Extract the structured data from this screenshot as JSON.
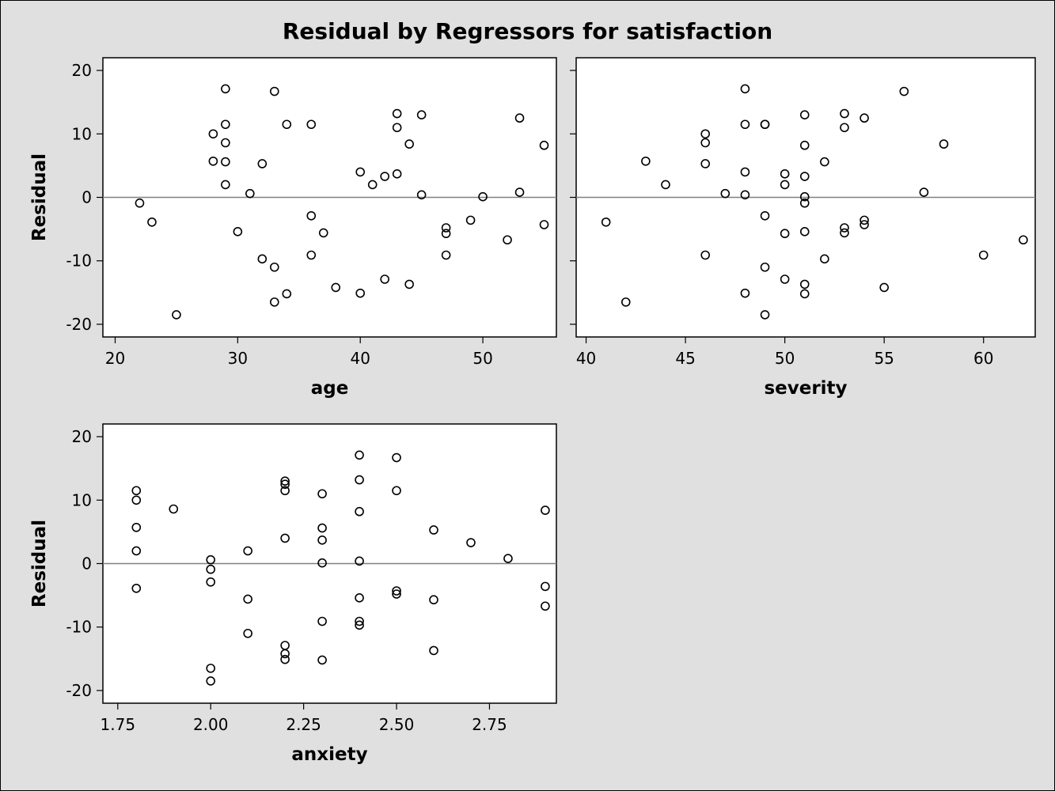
{
  "title": "Residual by Regressors for satisfaction",
  "colors": {
    "background": "#e0e0e0",
    "panel": "#ffffff",
    "reference_line": "#808080",
    "marker": "#000000"
  },
  "chart_data": [
    {
      "type": "scatter",
      "xlabel": "age",
      "ylabel": "Residual",
      "xticks": [
        "20",
        "30",
        "40",
        "50"
      ],
      "xtick_values": [
        20,
        30,
        40,
        50
      ],
      "yticks": [
        "-20",
        "-10",
        "0",
        "10",
        "20"
      ],
      "ytick_values": [
        -20,
        -10,
        0,
        10,
        20
      ],
      "xlim": [
        19,
        56
      ],
      "ylim": [
        -22,
        22
      ],
      "reference_line_y": 0,
      "points": [
        [
          22,
          -0.9
        ],
        [
          23,
          -3.9
        ],
        [
          25,
          -18.5
        ],
        [
          28,
          10.0
        ],
        [
          28,
          5.7
        ],
        [
          29,
          17.1
        ],
        [
          29,
          11.5
        ],
        [
          29,
          8.6
        ],
        [
          29,
          5.6
        ],
        [
          29,
          2.0
        ],
        [
          30,
          -5.4
        ],
        [
          31,
          0.6
        ],
        [
          32,
          5.3
        ],
        [
          32,
          -9.7
        ],
        [
          33,
          16.7
        ],
        [
          33,
          -11.0
        ],
        [
          33,
          -16.5
        ],
        [
          34,
          11.5
        ],
        [
          34,
          -15.2
        ],
        [
          36,
          11.5
        ],
        [
          36,
          -2.9
        ],
        [
          36,
          -9.1
        ],
        [
          37,
          -5.6
        ],
        [
          38,
          -14.2
        ],
        [
          40,
          4.0
        ],
        [
          40,
          -15.1
        ],
        [
          41,
          2.0
        ],
        [
          42,
          3.3
        ],
        [
          42,
          -12.9
        ],
        [
          43,
          13.2
        ],
        [
          43,
          11.0
        ],
        [
          43,
          3.7
        ],
        [
          44,
          8.4
        ],
        [
          44,
          -13.7
        ],
        [
          45,
          13.0
        ],
        [
          45,
          0.4
        ],
        [
          47,
          -4.8
        ],
        [
          47,
          -5.7
        ],
        [
          47,
          -9.1
        ],
        [
          49,
          -3.6
        ],
        [
          50,
          0.1
        ],
        [
          52,
          -6.7
        ],
        [
          53,
          12.5
        ],
        [
          53,
          0.8
        ],
        [
          55,
          8.2
        ],
        [
          55,
          -4.3
        ]
      ]
    },
    {
      "type": "scatter",
      "xlabel": "severity",
      "ylabel": "",
      "xticks": [
        "40",
        "45",
        "50",
        "55",
        "60"
      ],
      "xtick_values": [
        40,
        45,
        50,
        55,
        60
      ],
      "yticks": [],
      "ytick_values": [
        -20,
        -10,
        0,
        10,
        20
      ],
      "xlim": [
        39.5,
        62.6
      ],
      "ylim": [
        -22,
        22
      ],
      "reference_line_y": 0,
      "points": [
        [
          41,
          -3.9
        ],
        [
          42,
          -16.5
        ],
        [
          43,
          5.7
        ],
        [
          44,
          2.0
        ],
        [
          46,
          10.0
        ],
        [
          46,
          8.6
        ],
        [
          46,
          5.3
        ],
        [
          46,
          -9.1
        ],
        [
          47,
          0.6
        ],
        [
          48,
          17.1
        ],
        [
          48,
          11.5
        ],
        [
          48,
          4.0
        ],
        [
          48,
          0.4
        ],
        [
          48,
          -15.1
        ],
        [
          49,
          11.5
        ],
        [
          49,
          11.5
        ],
        [
          49,
          -2.9
        ],
        [
          49,
          -11.0
        ],
        [
          49,
          -18.5
        ],
        [
          50,
          3.7
        ],
        [
          50,
          2.0
        ],
        [
          50,
          -5.7
        ],
        [
          50,
          -12.9
        ],
        [
          51,
          13.0
        ],
        [
          51,
          8.2
        ],
        [
          51,
          3.3
        ],
        [
          51,
          0.1
        ],
        [
          51,
          -0.9
        ],
        [
          51,
          -5.4
        ],
        [
          51,
          -13.7
        ],
        [
          51,
          -15.2
        ],
        [
          52,
          5.6
        ],
        [
          52,
          -9.7
        ],
        [
          53,
          13.2
        ],
        [
          53,
          11.0
        ],
        [
          53,
          -4.8
        ],
        [
          53,
          -5.6
        ],
        [
          54,
          12.5
        ],
        [
          54,
          -3.6
        ],
        [
          54,
          -4.3
        ],
        [
          55,
          -14.2
        ],
        [
          56,
          16.7
        ],
        [
          57,
          0.8
        ],
        [
          58,
          8.4
        ],
        [
          60,
          -9.1
        ],
        [
          62,
          -6.7
        ]
      ]
    },
    {
      "type": "scatter",
      "xlabel": "anxiety",
      "ylabel": "Residual",
      "xticks": [
        "1.75",
        "2.00",
        "2.25",
        "2.50",
        "2.75"
      ],
      "xtick_values": [
        1.75,
        2.0,
        2.25,
        2.5,
        2.75
      ],
      "yticks": [
        "-20",
        "-10",
        "0",
        "10",
        "20"
      ],
      "ytick_values": [
        -20,
        -10,
        0,
        10,
        20
      ],
      "xlim": [
        1.71,
        2.93
      ],
      "ylim": [
        -22,
        22
      ],
      "reference_line_y": 0,
      "points": [
        [
          1.8,
          11.5
        ],
        [
          1.8,
          10.0
        ],
        [
          1.8,
          5.7
        ],
        [
          1.8,
          2.0
        ],
        [
          1.8,
          -3.9
        ],
        [
          1.9,
          8.6
        ],
        [
          2.0,
          0.6
        ],
        [
          2.0,
          -0.9
        ],
        [
          2.0,
          -2.9
        ],
        [
          2.0,
          -16.5
        ],
        [
          2.0,
          -18.5
        ],
        [
          2.1,
          2.0
        ],
        [
          2.1,
          -5.6
        ],
        [
          2.1,
          -11.0
        ],
        [
          2.2,
          13.0
        ],
        [
          2.2,
          12.5
        ],
        [
          2.2,
          11.5
        ],
        [
          2.2,
          4.0
        ],
        [
          2.2,
          -12.9
        ],
        [
          2.2,
          -14.2
        ],
        [
          2.2,
          -15.1
        ],
        [
          2.3,
          11.0
        ],
        [
          2.3,
          5.6
        ],
        [
          2.3,
          3.7
        ],
        [
          2.3,
          0.1
        ],
        [
          2.3,
          -9.1
        ],
        [
          2.3,
          -15.2
        ],
        [
          2.4,
          17.1
        ],
        [
          2.4,
          13.2
        ],
        [
          2.4,
          8.2
        ],
        [
          2.4,
          0.4
        ],
        [
          2.4,
          -5.4
        ],
        [
          2.4,
          -9.1
        ],
        [
          2.4,
          -9.7
        ],
        [
          2.5,
          16.7
        ],
        [
          2.5,
          11.5
        ],
        [
          2.5,
          -4.3
        ],
        [
          2.5,
          -4.8
        ],
        [
          2.6,
          5.3
        ],
        [
          2.6,
          -5.7
        ],
        [
          2.6,
          -13.7
        ],
        [
          2.7,
          3.3
        ],
        [
          2.8,
          0.8
        ],
        [
          2.9,
          8.4
        ],
        [
          2.9,
          -3.6
        ],
        [
          2.9,
          -6.7
        ]
      ]
    }
  ]
}
